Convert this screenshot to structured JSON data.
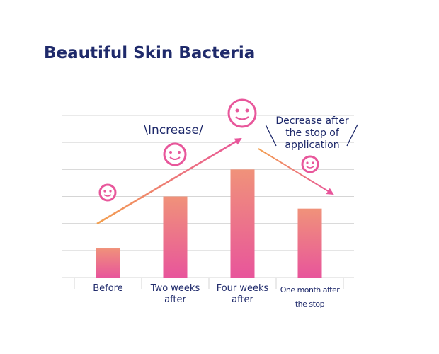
{
  "chart_data": {
    "type": "bar",
    "title": "Beautiful Skin Bacteria",
    "categories": [
      "Before",
      "Two weeks after",
      "Four weeks after",
      "One month after the stop"
    ],
    "values": [
      1.1,
      3.0,
      4.0,
      2.55
    ],
    "color": "#e8579b",
    "ylim": [
      0,
      6
    ],
    "yticks": [
      0,
      1,
      2,
      3,
      4,
      5,
      6
    ],
    "grid": true,
    "annotations": [
      "\\Increase/",
      "Decrease after the stop of application"
    ]
  }
}
